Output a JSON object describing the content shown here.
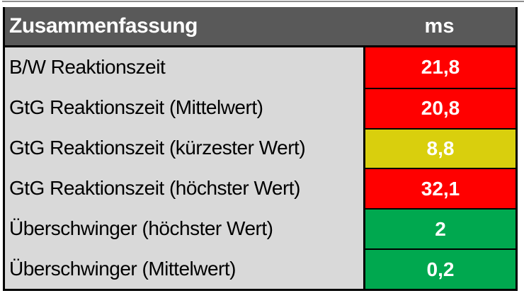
{
  "table": {
    "header": {
      "title": "Zusammenfassung",
      "unit_label": "ms"
    },
    "rows": [
      {
        "label": "B/W Reaktionszeit",
        "value": "21,8",
        "status": "red"
      },
      {
        "label": "GtG Reaktionszeit (Mittelwert)",
        "value": "20,8",
        "status": "red"
      },
      {
        "label": "GtG Reaktionszeit (kürzester Wert)",
        "value": "8,8",
        "status": "yellow"
      },
      {
        "label": "GtG Reaktionszeit (höchster Wert)",
        "value": "32,1",
        "status": "red"
      },
      {
        "label": "Überschwinger (höchster Wert)",
        "value": "2",
        "status": "green"
      },
      {
        "label": "Überschwinger (Mittelwert)",
        "value": "0,2",
        "status": "green"
      }
    ],
    "colors": {
      "red": "#ff0000",
      "yellow": "#d9cf0d",
      "green": "#00a84f",
      "header_bg": "#595959",
      "row_bg": "#d9d9d9",
      "border": "#000000"
    }
  },
  "chart_data": {
    "type": "table",
    "title": "Zusammenfassung",
    "columns": [
      "Zusammenfassung",
      "ms"
    ],
    "rows": [
      [
        "B/W Reaktionszeit",
        "21,8"
      ],
      [
        "GtG Reaktionszeit (Mittelwert)",
        "20,8"
      ],
      [
        "GtG Reaktionszeit (kürzester Wert)",
        "8,8"
      ],
      [
        "GtG Reaktionszeit (höchster Wert)",
        "32,1"
      ],
      [
        "Überschwinger (höchster Wert)",
        "2"
      ],
      [
        "Überschwinger (Mittelwert)",
        "0,2"
      ]
    ],
    "cell_status_colors": [
      "red",
      "red",
      "yellow",
      "red",
      "green",
      "green"
    ],
    "legend_semantics": {
      "red": "bad",
      "yellow": "medium",
      "green": "good"
    }
  }
}
